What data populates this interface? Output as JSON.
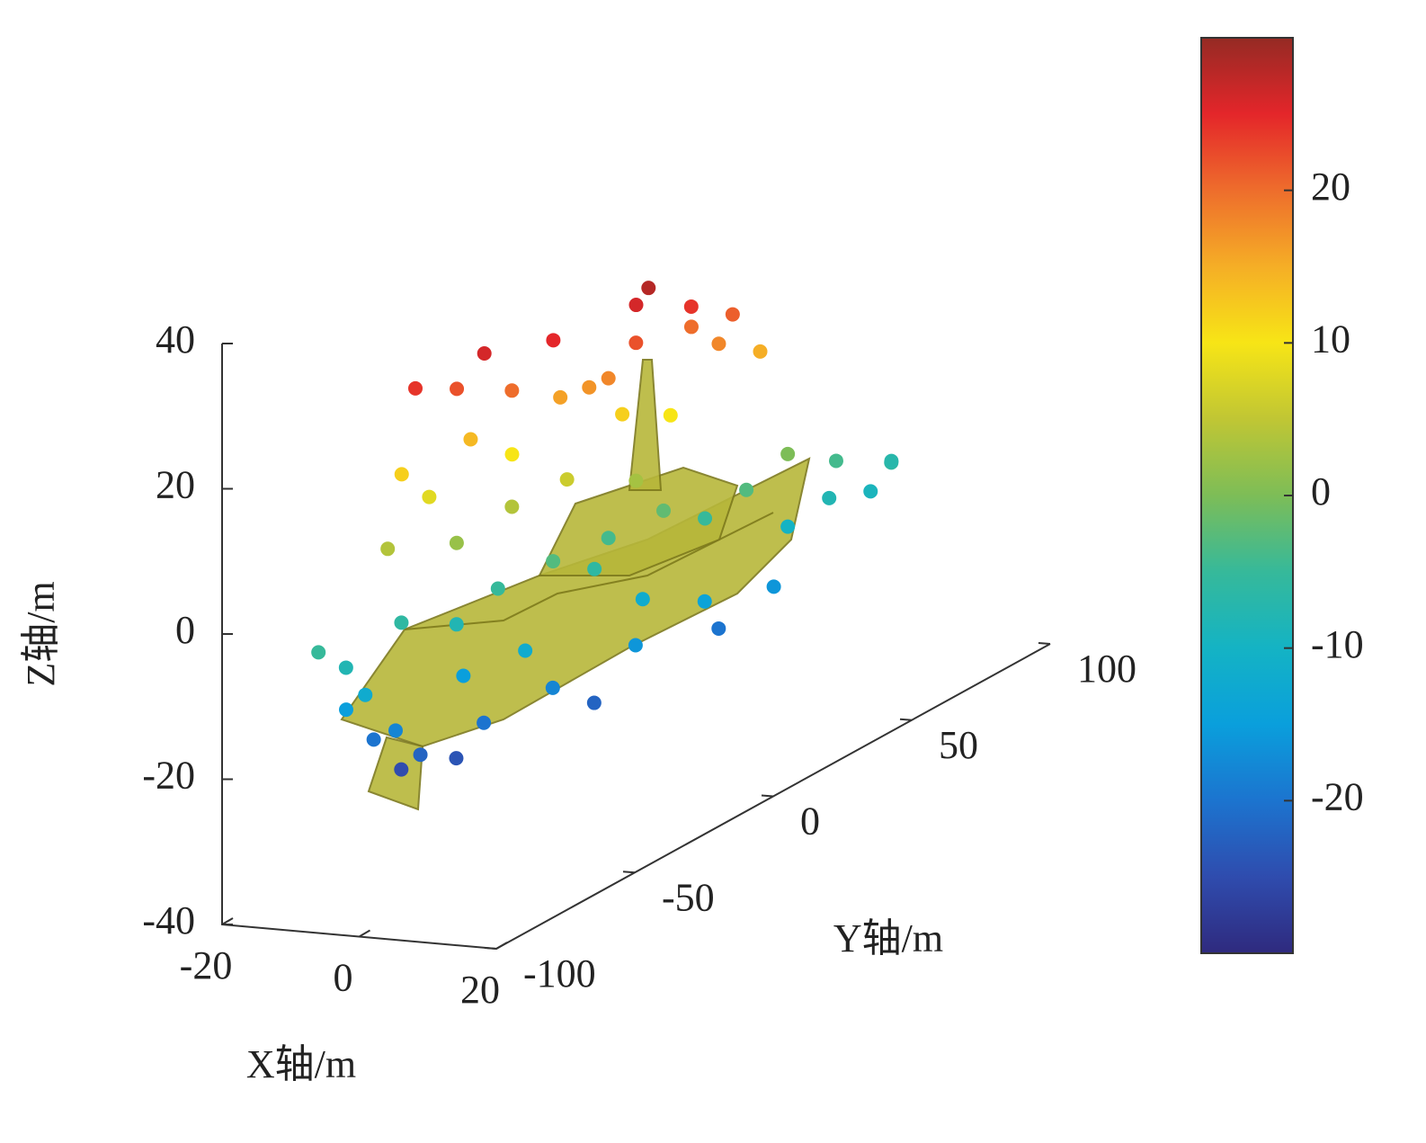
{
  "chart_data": {
    "type": "scatter3d",
    "xlabel": "X轴/m",
    "ylabel": "Y轴/m",
    "zlabel": "Z轴/m",
    "xlim": [
      -20,
      20
    ],
    "xticks": [
      -20,
      0,
      20
    ],
    "ylim": [
      -100,
      100
    ],
    "yticks": [
      -100,
      -50,
      0,
      50,
      100
    ],
    "zlim": [
      -40,
      40
    ],
    "zticks": [
      -40,
      -20,
      0,
      20,
      40
    ],
    "clim": [
      -30,
      30
    ],
    "cticks": [
      -20,
      -10,
      0,
      10,
      20
    ],
    "colormap": [
      "#2f2a7e",
      "#2f4cae",
      "#1c74cf",
      "#0a9fdc",
      "#14b3c4",
      "#36b99a",
      "#7dbd57",
      "#c0c634",
      "#f7e516",
      "#f5ae26",
      "#ee6d2c",
      "#e4262a",
      "#952a24"
    ],
    "x": [
      -12,
      -10,
      -8,
      -12,
      -6,
      -10,
      -4,
      -8,
      -2,
      0,
      -5,
      2,
      4,
      6,
      8,
      5,
      10,
      8,
      12,
      10,
      12,
      14,
      15,
      13,
      11,
      -10,
      -6,
      -4,
      0,
      2,
      0,
      4,
      6,
      8,
      10,
      -8,
      -6,
      -2,
      2,
      -14,
      -12,
      -10,
      -8,
      -5,
      0,
      3,
      6,
      8,
      -12,
      -10,
      -6,
      -4,
      0,
      2,
      0,
      1,
      4,
      2,
      -8,
      -12,
      6,
      -2
    ],
    "y": [
      -85,
      -80,
      -78,
      -75,
      -72,
      -70,
      -68,
      -65,
      -60,
      -55,
      -50,
      -45,
      -40,
      -30,
      -20,
      -10,
      0,
      10,
      20,
      30,
      40,
      50,
      55,
      60,
      45,
      -60,
      -50,
      -40,
      -30,
      -20,
      -10,
      0,
      10,
      20,
      30,
      -45,
      -30,
      -20,
      -5,
      -50,
      -45,
      -35,
      -25,
      -15,
      -5,
      5,
      15,
      25,
      -60,
      -40,
      -30,
      -20,
      -10,
      -5,
      0,
      2,
      10,
      15,
      -35,
      -50,
      20,
      -12
    ],
    "z": [
      -5,
      -8,
      -12,
      -15,
      -18,
      -20,
      -22,
      -25,
      -24,
      -20,
      -15,
      -12,
      -18,
      -22,
      -16,
      -12,
      -14,
      -20,
      -16,
      -10,
      -8,
      -9,
      -6,
      -7,
      -4,
      -6,
      -8,
      -5,
      -3,
      -6,
      -4,
      -2,
      -5,
      -3,
      0,
      2,
      4,
      6,
      3,
      12,
      8,
      14,
      10,
      16,
      12,
      10,
      18,
      15,
      4,
      22,
      20,
      25,
      18,
      22,
      26,
      28,
      24,
      20,
      26,
      24,
      21,
      17
    ]
  }
}
